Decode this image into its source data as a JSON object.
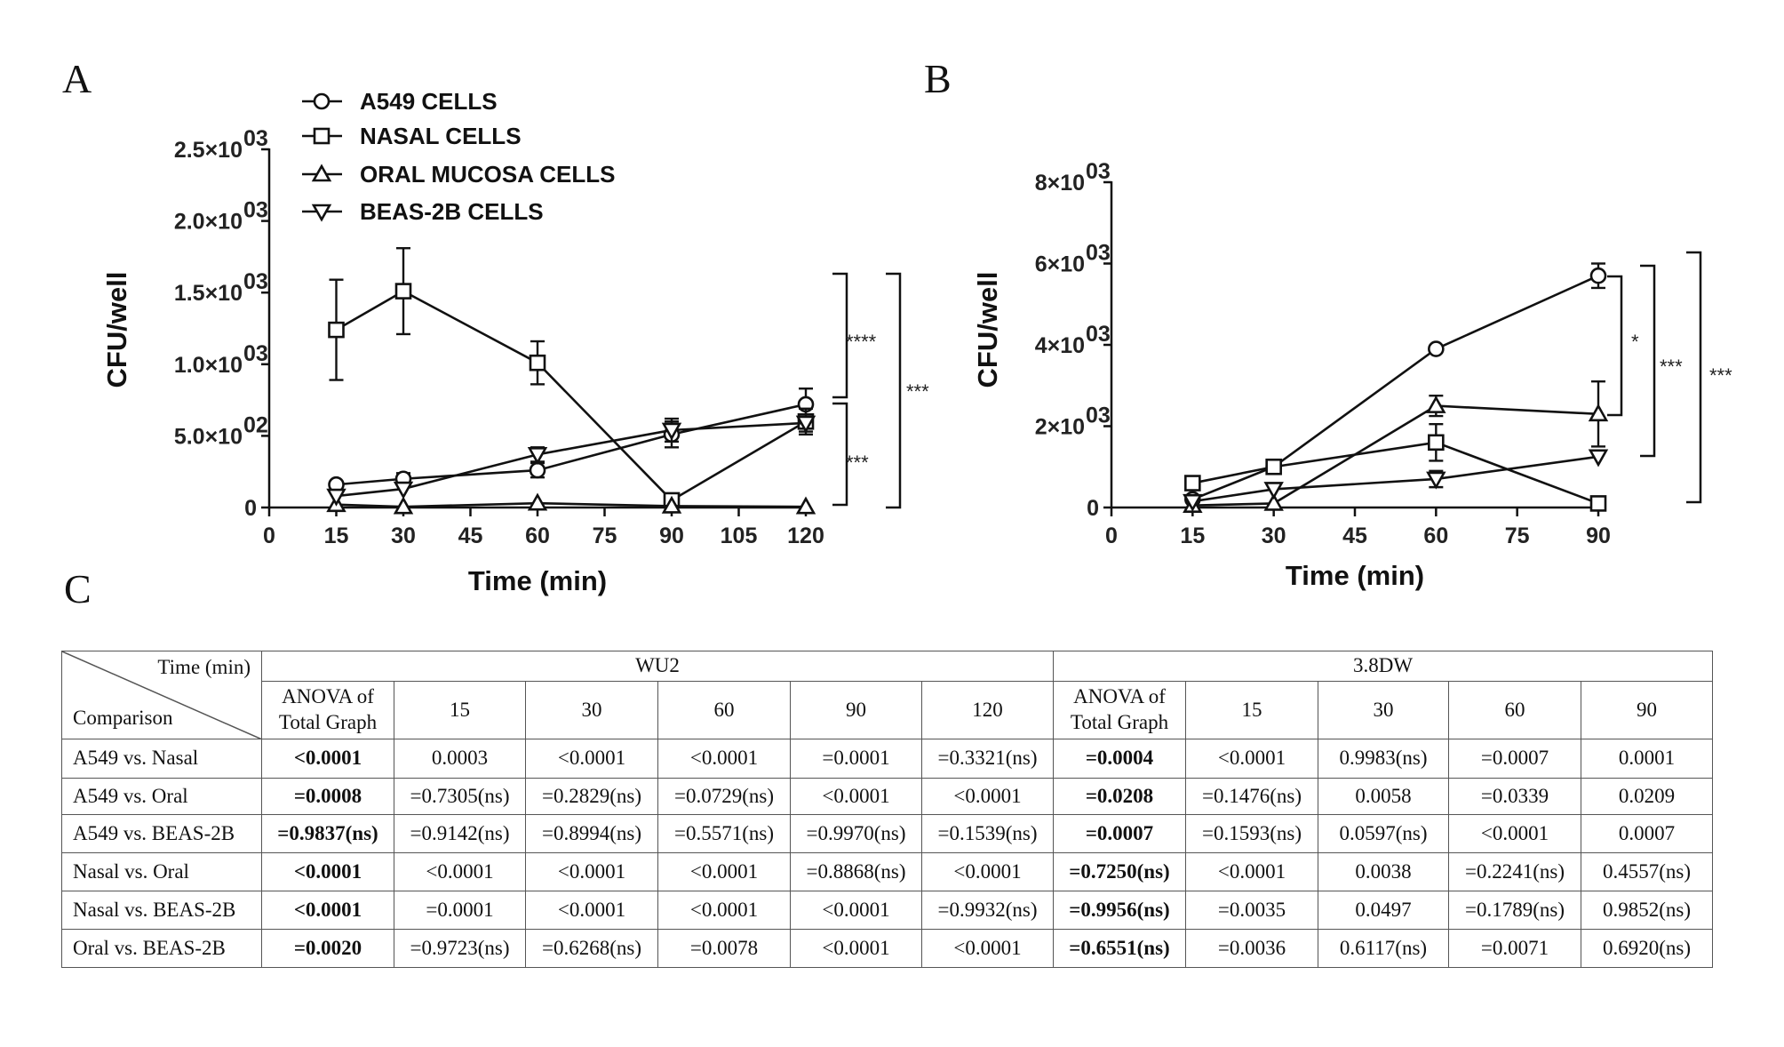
{
  "panels": {
    "a": "A",
    "b": "B",
    "c": "C"
  },
  "chart_data": [
    {
      "type": "line",
      "panel": "A",
      "xlabel": "Time (min)",
      "ylabel": "CFU/well",
      "xlim": [
        0,
        120
      ],
      "ylim": [
        0,
        2500
      ],
      "xticks": [
        0,
        15,
        30,
        45,
        60,
        75,
        90,
        105,
        120
      ],
      "yticks": [
        {
          "value": 0,
          "label": "0",
          "exp": ""
        },
        {
          "value": 500,
          "label": "5.0×10",
          "exp": "02"
        },
        {
          "value": 1000,
          "label": "1.0×10",
          "exp": "03"
        },
        {
          "value": 1500,
          "label": "1.5×10",
          "exp": "03"
        },
        {
          "value": 2000,
          "label": "2.0×10",
          "exp": "03"
        },
        {
          "value": 2500,
          "label": "2.5×10",
          "exp": "03"
        }
      ],
      "x": [
        15,
        30,
        60,
        90,
        120
      ],
      "series": [
        {
          "name": "A549 CELLS",
          "marker": "circle",
          "values": [
            160,
            200,
            260,
            510,
            720
          ],
          "errors": [
            30,
            40,
            50,
            90,
            110
          ]
        },
        {
          "name": "NASAL CELLS",
          "marker": "square",
          "values": [
            1240,
            1510,
            1010,
            50,
            600
          ],
          "errors": [
            350,
            300,
            150,
            40,
            90
          ]
        },
        {
          "name": "ORAL MUCOSA CELLS",
          "marker": "triangle-up",
          "values": [
            20,
            5,
            30,
            10,
            5
          ],
          "errors": [
            10,
            5,
            10,
            5,
            5
          ]
        },
        {
          "name": "BEAS-2B CELLS",
          "marker": "triangle-down",
          "values": [
            80,
            130,
            370,
            540,
            590
          ],
          "errors": [
            20,
            30,
            50,
            80,
            60
          ]
        }
      ],
      "annotations": [
        "****",
        "***",
        "***"
      ],
      "legend": "top-left"
    },
    {
      "type": "line",
      "panel": "B",
      "xlabel": "Time (min)",
      "ylabel": "CFU/well",
      "xlim": [
        0,
        90
      ],
      "ylim": [
        0,
        8000
      ],
      "xticks": [
        0,
        15,
        30,
        45,
        60,
        75,
        90
      ],
      "yticks": [
        {
          "value": 0,
          "label": "0",
          "exp": ""
        },
        {
          "value": 2000,
          "label": "2×10",
          "exp": "03"
        },
        {
          "value": 4000,
          "label": "4×10",
          "exp": "03"
        },
        {
          "value": 6000,
          "label": "6×10",
          "exp": "03"
        },
        {
          "value": 8000,
          "label": "8×10",
          "exp": "03"
        }
      ],
      "x": [
        15,
        30,
        60,
        90
      ],
      "series": [
        {
          "name": "A549 CELLS",
          "marker": "circle",
          "values": [
            200,
            1000,
            3900,
            5700
          ],
          "errors": [
            50,
            80,
            60,
            300
          ]
        },
        {
          "name": "NASAL CELLS",
          "marker": "square",
          "values": [
            600,
            1000,
            1600,
            100
          ],
          "errors": [
            60,
            80,
            450,
            40
          ]
        },
        {
          "name": "ORAL MUCOSA CELLS",
          "marker": "triangle-up",
          "values": [
            50,
            100,
            2500,
            2300
          ],
          "errors": [
            20,
            40,
            250,
            800
          ]
        },
        {
          "name": "BEAS-2B CELLS",
          "marker": "triangle-down",
          "values": [
            150,
            450,
            700,
            1250
          ],
          "errors": [
            30,
            60,
            200,
            100
          ]
        }
      ],
      "annotations": [
        "*",
        "***",
        "***"
      ]
    }
  ],
  "table": {
    "corner_top": "Time (min)",
    "corner_bottom": "Comparison",
    "groups": [
      "WU2",
      "3.8DW"
    ],
    "wu2_cols": [
      "ANOVA of Total Graph",
      "15",
      "30",
      "60",
      "90",
      "120"
    ],
    "dw_cols": [
      "ANOVA of Total Graph",
      "15",
      "30",
      "60",
      "90"
    ],
    "rows": [
      {
        "label": "A549 vs. Nasal",
        "wu2": [
          "<0.0001",
          "0.0003",
          "<0.0001",
          "<0.0001",
          "=0.0001",
          "=0.3321(ns)"
        ],
        "dw": [
          "=0.0004",
          "<0.0001",
          "0.9983(ns)",
          "=0.0007",
          "0.0001"
        ]
      },
      {
        "label": "A549 vs. Oral",
        "wu2": [
          "=0.0008",
          "=0.7305(ns)",
          "=0.2829(ns)",
          "=0.0729(ns)",
          "<0.0001",
          "<0.0001"
        ],
        "dw": [
          "=0.0208",
          "=0.1476(ns)",
          "0.0058",
          "=0.0339",
          "0.0209"
        ]
      },
      {
        "label": "A549 vs. BEAS-2B",
        "wu2": [
          "=0.9837(ns)",
          "=0.9142(ns)",
          "=0.8994(ns)",
          "=0.5571(ns)",
          "=0.9970(ns)",
          "=0.1539(ns)"
        ],
        "dw": [
          "=0.0007",
          "=0.1593(ns)",
          "0.0597(ns)",
          "<0.0001",
          "0.0007"
        ]
      },
      {
        "label": "Nasal vs. Oral",
        "wu2": [
          "<0.0001",
          "<0.0001",
          "<0.0001",
          "<0.0001",
          "=0.8868(ns)",
          "<0.0001"
        ],
        "dw": [
          "=0.7250(ns)",
          "<0.0001",
          "0.0038",
          "=0.2241(ns)",
          "0.4557(ns)"
        ]
      },
      {
        "label": "Nasal vs. BEAS-2B",
        "wu2": [
          "<0.0001",
          "=0.0001",
          "<0.0001",
          "<0.0001",
          "<0.0001",
          "=0.9932(ns)"
        ],
        "dw": [
          "=0.9956(ns)",
          "=0.0035",
          "0.0497",
          "=0.1789(ns)",
          "0.9852(ns)"
        ]
      },
      {
        "label": "Oral vs. BEAS-2B",
        "wu2": [
          "=0.0020",
          "=0.9723(ns)",
          "=0.6268(ns)",
          "=0.0078",
          "<0.0001",
          "<0.0001"
        ],
        "dw": [
          "=0.6551(ns)",
          "=0.0036",
          "0.6117(ns)",
          "=0.0071",
          "0.6920(ns)"
        ]
      }
    ]
  }
}
